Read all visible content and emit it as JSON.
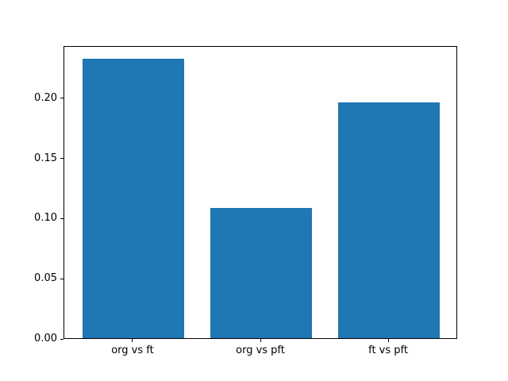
{
  "chart_data": {
    "type": "bar",
    "title": "",
    "xlabel": "",
    "ylabel": "",
    "categories": [
      "org vs ft",
      "org vs pft",
      "ft vs pft"
    ],
    "values": [
      0.232,
      0.108,
      0.196
    ],
    "bar_color": "#1f77b4",
    "bar_width": 0.8,
    "xlim": [
      -0.54,
      2.54
    ],
    "ylim": [
      0,
      0.2436
    ],
    "yticks": [
      0.0,
      0.05,
      0.1,
      0.15,
      0.2
    ],
    "ytick_labels": [
      "0.00",
      "0.05",
      "0.10",
      "0.15",
      "0.20"
    ],
    "grid": false,
    "legend": null,
    "spine_color": "#000000",
    "background_color": "#ffffff"
  }
}
